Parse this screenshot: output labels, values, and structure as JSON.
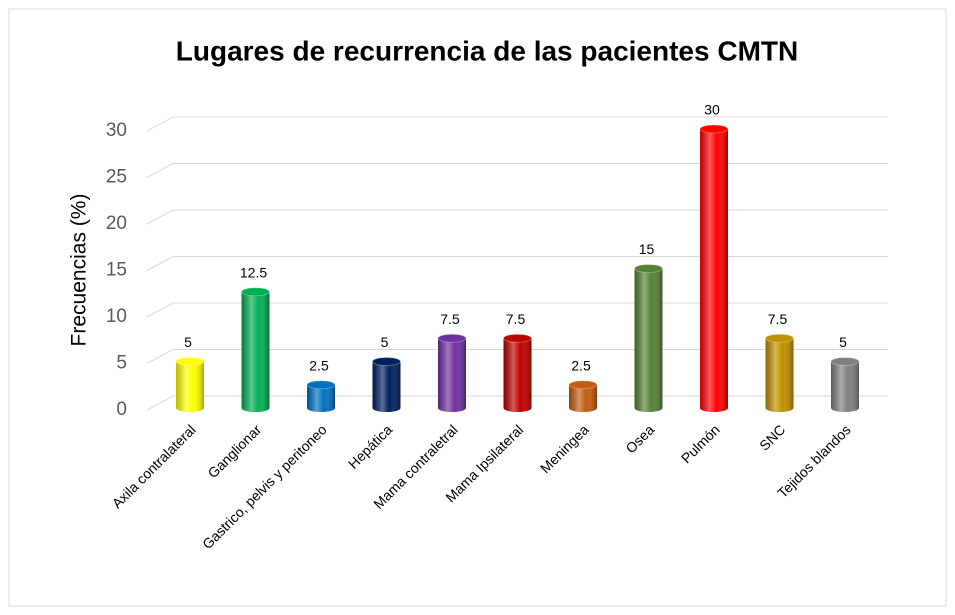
{
  "chart_data": {
    "type": "bar",
    "title": "Lugares de recurrencia de las pacientes CMTN",
    "y_label": "Frecuencias (%)",
    "categories": [
      "Axila contralateral",
      "Ganglionar",
      "Gastrico, pelvis y peritoneo",
      "Hepática",
      "Mama contraletral",
      "Mama Ipsilateral",
      "Meningea",
      "Osea",
      "Pulmón",
      "SNC",
      "Tejidos blandos"
    ],
    "values": [
      5,
      12.5,
      2.5,
      5,
      7.5,
      7.5,
      2.5,
      15,
      30,
      7.5,
      5
    ],
    "colors": [
      "#ffff00",
      "#00b050",
      "#0070c0",
      "#002060",
      "#7030a0",
      "#c00000",
      "#c55a11",
      "#548235",
      "#ff0000",
      "#bf9000",
      "#808080"
    ],
    "ylim": [
      0,
      30
    ],
    "yticks": [
      0,
      5,
      10,
      15,
      20,
      25,
      30
    ],
    "grid": true
  }
}
